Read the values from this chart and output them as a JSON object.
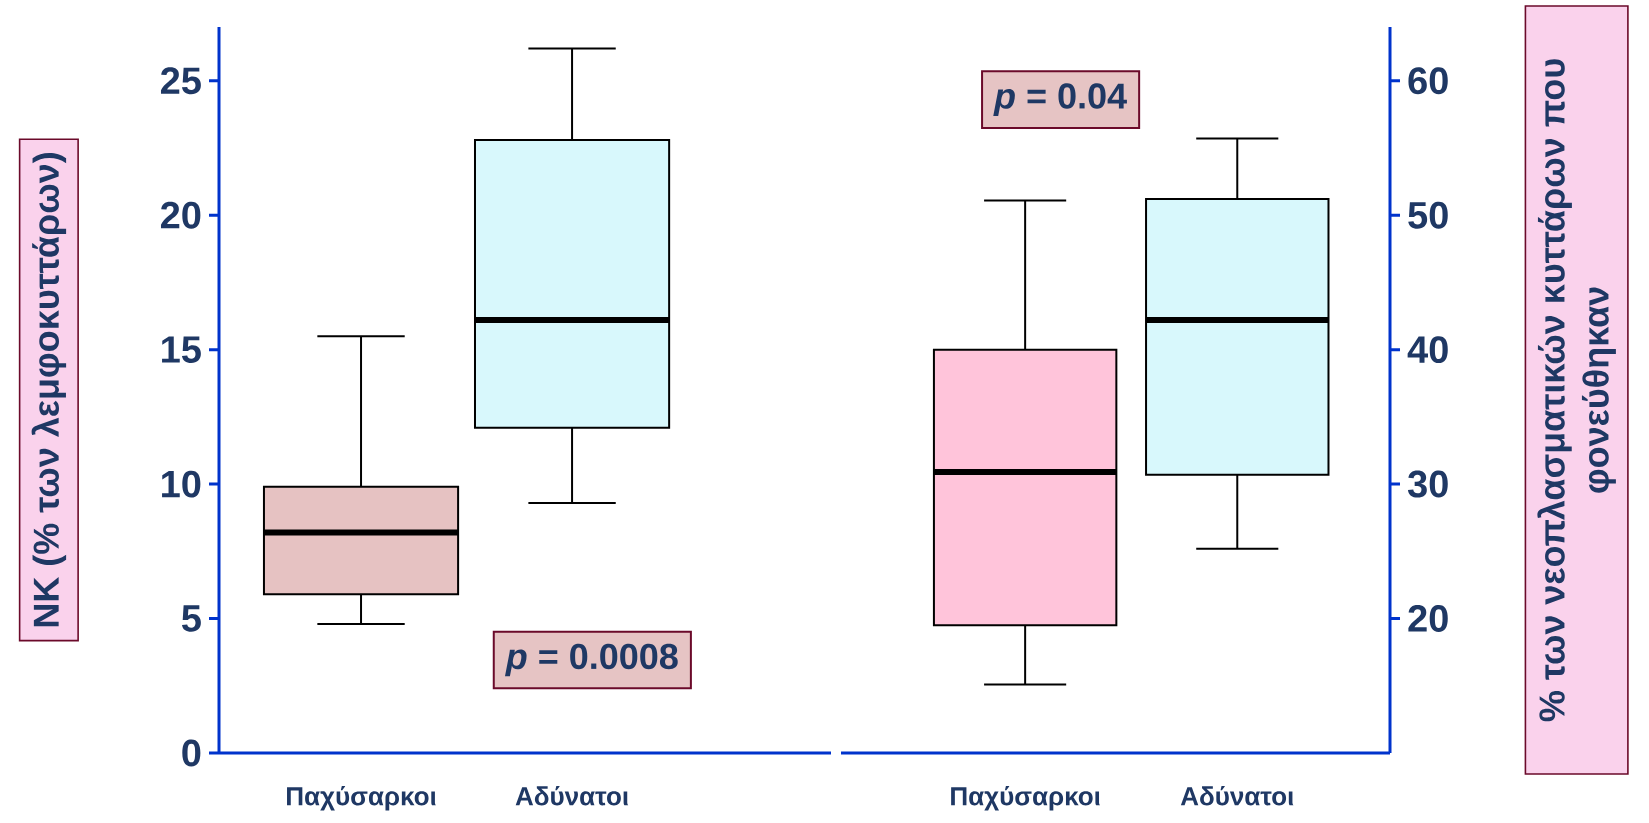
{
  "chart_data": [
    {
      "type": "box",
      "categories": [
        "Παχύσαρκοι",
        "Αδύνατοι"
      ],
      "ylabel": "NK (% των λεμφοκυττάρων)",
      "ylim": [
        0,
        27
      ],
      "yticks": [
        0,
        5,
        10,
        15,
        20,
        25
      ],
      "colors": [
        "#e6c2c2",
        "#d8f8fc"
      ],
      "boxes": [
        {
          "low": 4.8,
          "q1": 5.9,
          "median": 8.2,
          "q3": 9.9,
          "high": 15.5
        },
        {
          "low": 9.3,
          "q1": 12.1,
          "median": 16.1,
          "q3": 22.8,
          "high": 26.2
        }
      ],
      "annotations": [
        "*p* = 0.0008"
      ]
    },
    {
      "type": "box",
      "categories": [
        "Παχύσαρκοι",
        "Αδύνατοι"
      ],
      "ylabel": "% των νεοπλασματικών κυττάρων που φονεύθηκαν",
      "ylim": [
        10,
        64
      ],
      "yticks": [
        20,
        30,
        40,
        50,
        60
      ],
      "colors": [
        "#ffc4da",
        "#d8f8fc"
      ],
      "boxes": [
        {
          "low": 15.1,
          "q1": 19.5,
          "median": 30.9,
          "q3": 40,
          "high": 51.1
        },
        {
          "low": 25.2,
          "q1": 30.7,
          "median": 42.2,
          "q3": 51.2,
          "high": 55.7
        }
      ],
      "annotations": [
        "*p* = 0.04"
      ]
    }
  ]
}
